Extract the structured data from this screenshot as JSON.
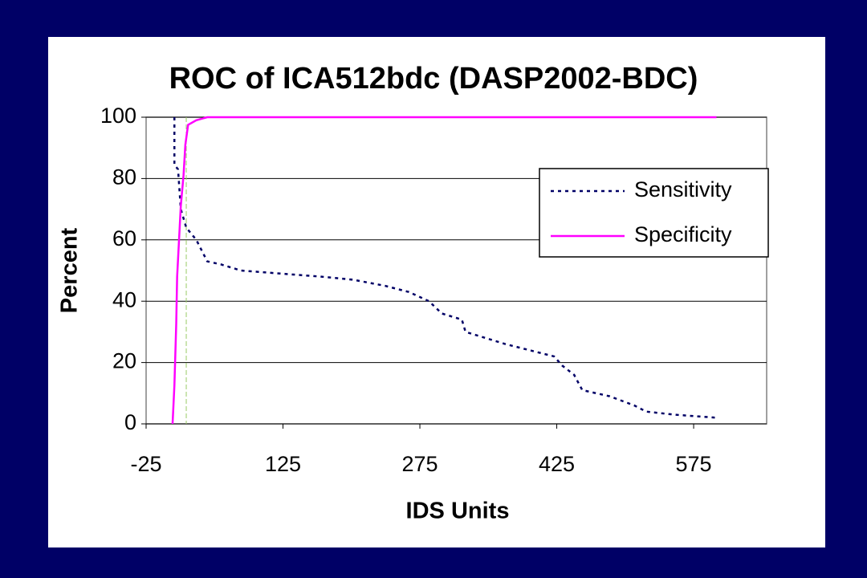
{
  "chart_data": {
    "type": "line",
    "title": "ROC of ICA512bdc (DASP2002-BDC)",
    "x_label": "IDS Units",
    "y_label": "Percent",
    "xlim": [
      -25,
      655
    ],
    "xticks": [
      -25,
      125,
      275,
      425,
      575
    ],
    "ylim": [
      0,
      100
    ],
    "yticks": [
      0,
      20,
      40,
      60,
      80,
      100
    ],
    "grid": true,
    "legend": "right",
    "reference_line": {
      "x": 19,
      "color": "#99cc66"
    },
    "series": [
      {
        "name": "Sensitivity",
        "color": "#000066",
        "dash": true,
        "x": [
          6,
          6,
          10,
          13,
          19,
          30,
          42,
          57,
          79,
          123,
          167,
          202,
          237,
          263,
          285,
          299,
          321,
          325,
          369,
          422,
          431,
          444,
          453,
          483,
          510,
          523,
          554,
          600
        ],
        "values": [
          100,
          84.5,
          83,
          70,
          64,
          60,
          53,
          52,
          50,
          49,
          48,
          47,
          45,
          43,
          40,
          36,
          34,
          30,
          26,
          22,
          19,
          16,
          11,
          9,
          6,
          4,
          3,
          2
        ]
      },
      {
        "name": "Specificity",
        "color": "#ff00ff",
        "dash": false,
        "x": [
          4,
          6,
          8,
          9,
          13,
          16,
          18,
          21,
          30,
          42,
          600
        ],
        "values": [
          0,
          12.5,
          32.5,
          48,
          71,
          81,
          91,
          97.5,
          99,
          100,
          100
        ]
      }
    ]
  }
}
